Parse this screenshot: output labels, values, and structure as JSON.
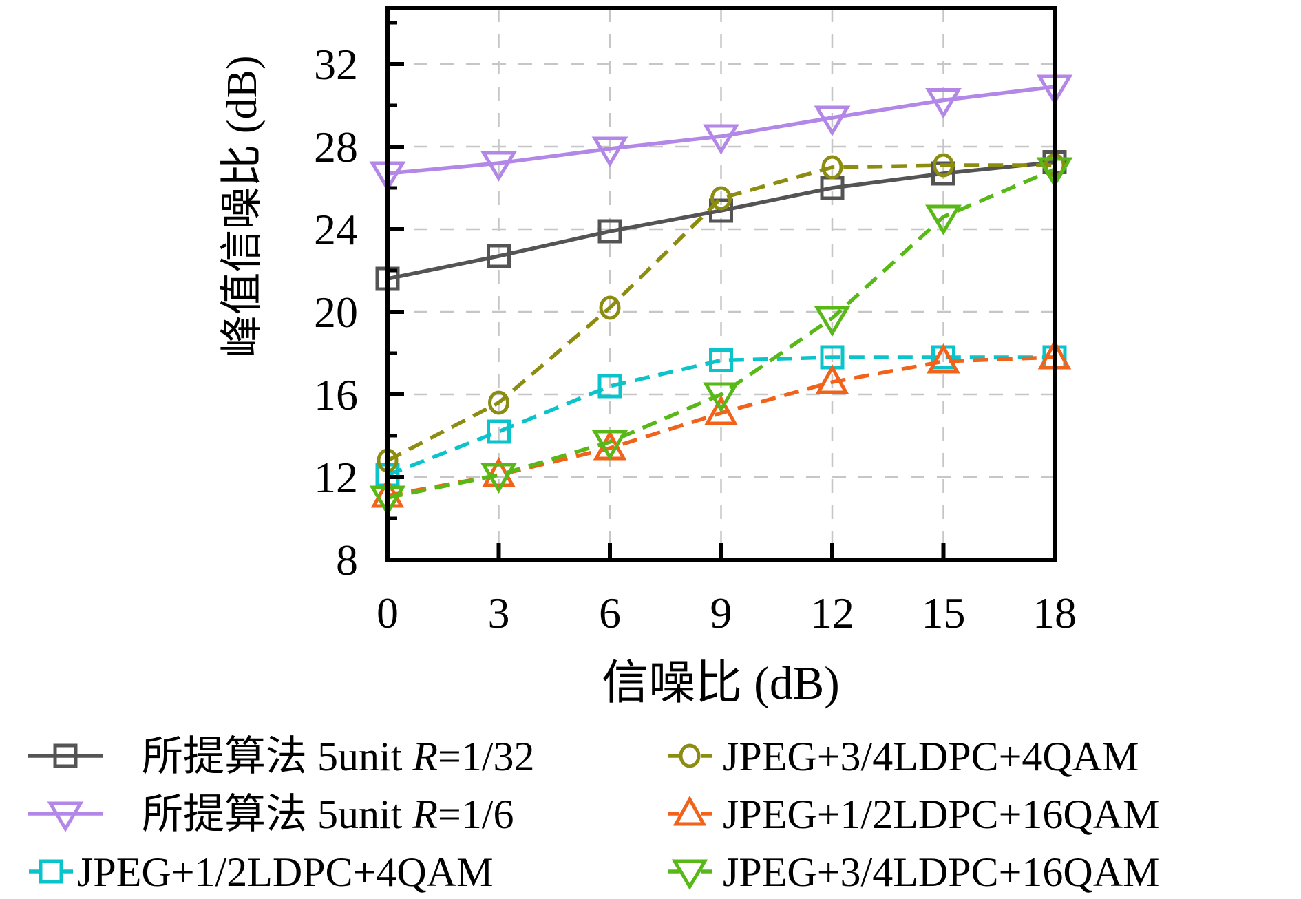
{
  "chart_data": {
    "type": "line",
    "x": [
      0,
      3,
      6,
      9,
      12,
      15,
      18
    ],
    "xlabel": "信噪比 (dB)",
    "ylabel": "峰值信噪比 (dB)",
    "xlim": [
      0,
      18
    ],
    "ylim": [
      8,
      34.7
    ],
    "xticks": [
      0,
      3,
      6,
      9,
      12,
      15,
      18
    ],
    "yticks": [
      8,
      12,
      16,
      20,
      24,
      28,
      32
    ],
    "y_minor_ticks": [
      10,
      14,
      18,
      22,
      26,
      30,
      34
    ],
    "grid": true,
    "grid_color": "#c6c6c6",
    "background": "#ffffff",
    "series": [
      {
        "name": "所提算法 5unit R=1/32",
        "color": "#545454",
        "marker": "square",
        "line": "solid",
        "values": [
          21.6,
          22.7,
          23.9,
          24.9,
          26.0,
          26.7,
          27.25
        ]
      },
      {
        "name": "所提算法 5unit R=1/6",
        "color": "#b287e8",
        "marker": "triangle-down",
        "line": "solid",
        "values": [
          26.7,
          27.2,
          27.9,
          28.5,
          29.4,
          30.25,
          30.9
        ]
      },
      {
        "name": "JPEG+1/2LDPC+4QAM",
        "color": "#0bc3ca",
        "marker": "square",
        "line": "dashed",
        "values": [
          12.1,
          14.2,
          16.4,
          17.65,
          17.8,
          17.8,
          17.8
        ]
      },
      {
        "name": "JPEG+3/4LDPC+4QAM",
        "color": "#8c8c10",
        "marker": "circle",
        "line": "dashed",
        "values": [
          12.8,
          15.6,
          20.2,
          25.5,
          27.0,
          27.1,
          27.1
        ]
      },
      {
        "name": "JPEG+1/2LDPC+16QAM",
        "color": "#f1621a",
        "marker": "triangle-up",
        "line": "dashed",
        "values": [
          11.1,
          12.1,
          13.4,
          15.1,
          16.6,
          17.6,
          17.8
        ]
      },
      {
        "name": "JPEG+3/4LDPC+16QAM",
        "color": "#58b818",
        "marker": "triangle-down",
        "line": "dashed",
        "values": [
          11.0,
          12.1,
          13.7,
          16.0,
          19.7,
          24.6,
          26.9
        ]
      }
    ],
    "legend": {
      "position": "below",
      "items": [
        {
          "series": 0,
          "parts": [
            {
              "text": "所提算法 5unit ",
              "italic": false
            },
            {
              "text": "R",
              "italic": true
            },
            {
              "text": "=1/32",
              "italic": false
            }
          ]
        },
        {
          "series": 1,
          "parts": [
            {
              "text": "所提算法 5unit ",
              "italic": false
            },
            {
              "text": "R",
              "italic": true
            },
            {
              "text": "=1/6",
              "italic": false
            }
          ]
        },
        {
          "series": 2,
          "parts": [
            {
              "text": "JPEG+1/2LDPC+4QAM",
              "italic": false
            }
          ]
        },
        {
          "series": 3,
          "parts": [
            {
              "text": "JPEG+3/4LDPC+4QAM",
              "italic": false
            }
          ]
        },
        {
          "series": 4,
          "parts": [
            {
              "text": "JPEG+1/2LDPC+16QAM",
              "italic": false
            }
          ]
        },
        {
          "series": 5,
          "parts": [
            {
              "text": "JPEG+3/4LDPC+16QAM",
              "italic": false
            }
          ]
        }
      ]
    }
  }
}
